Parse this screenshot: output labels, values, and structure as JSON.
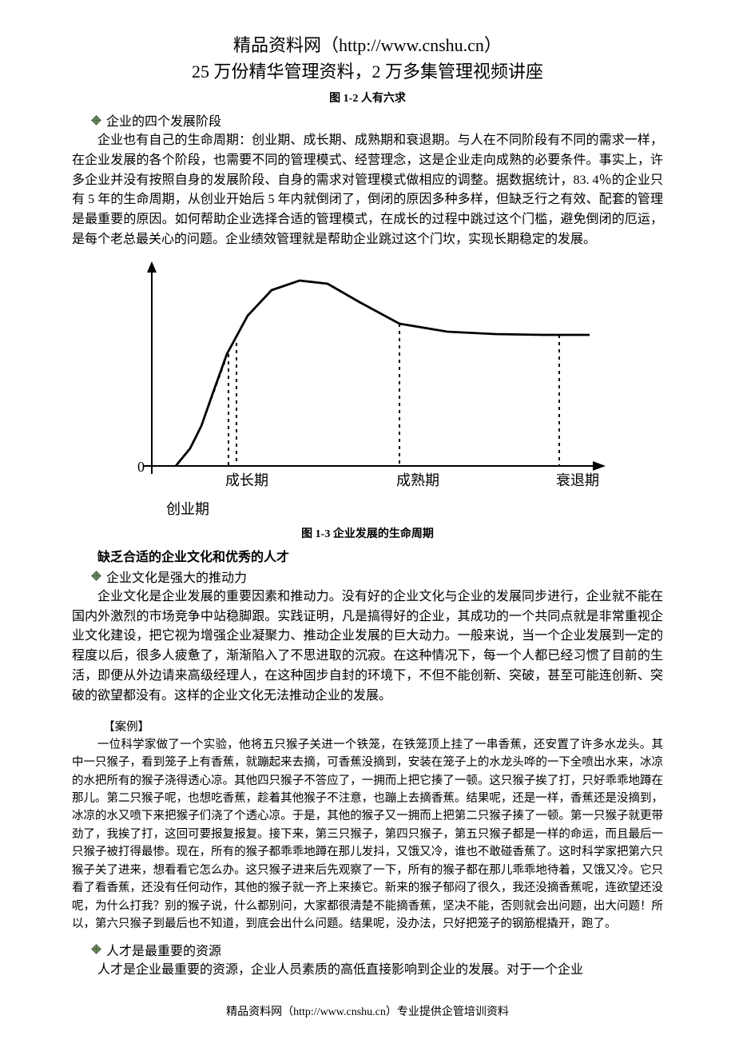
{
  "header": {
    "line1": "精品资料网（http://www.cnshu.cn）",
    "line2": "25 万份精华管理资料，2 万多集管理视频讲座"
  },
  "fig12_caption": "图 1-2   人有六求",
  "bullet1": "企业的四个发展阶段",
  "p1": "企业也有自己的生命周期：创业期、成长期、成熟期和衰退期。与人在不同阶段有不同的需求一样，在企业发展的各个阶段，也需要不同的管理模式、经营理念，这是企业走向成熟的必要条件。事实上，许多企业并没有按照自身的发展阶段、自身的需求对管理模式做相应的调整。据数据统计，83. 4％的企业只有 5 年的生命周期，从创业开始后 5 年内就倒闭了，倒闭的原因多种多样，但缺乏行之有效、配套的管理是最重要的原因。如何帮助企业选择合适的管理模式，在成长的过程中跳过这个门槛，避免倒闭的厄运，是每个老总最关心的问题。企业绩效管理就是帮助企业跳过这个门坎，实现长期稳定的发展。",
  "chart": {
    "type": "line",
    "axis_color": "#000000",
    "curve_color": "#000000",
    "curve_width": 2.8,
    "dash_pattern": "4,5",
    "phase_labels": [
      "成长期",
      "成熟期",
      "衰退期"
    ],
    "below_axis_label": "创业期",
    "origin_label": "0",
    "label_fontsize": 18,
    "label_font": "KaiTi, 楷体, serif",
    "xlim": [
      0,
      560
    ],
    "ylim": [
      0,
      260
    ],
    "x_ticks": [
      96,
      310,
      510
    ],
    "curve_points": [
      [
        30,
        250
      ],
      [
        48,
        228
      ],
      [
        62,
        200
      ],
      [
        76,
        160
      ],
      [
        94,
        110
      ],
      [
        120,
        62
      ],
      [
        150,
        30
      ],
      [
        185,
        18
      ],
      [
        220,
        22
      ],
      [
        260,
        45
      ],
      [
        310,
        72
      ],
      [
        370,
        82
      ],
      [
        430,
        85
      ],
      [
        490,
        86
      ],
      [
        548,
        86
      ]
    ],
    "dash_segments": [
      {
        "from": [
          62,
          200
        ],
        "to": [
          92,
          118
        ]
      },
      {
        "from": [
          96,
          110
        ],
        "to": [
          96,
          250
        ]
      },
      {
        "from": [
          106,
          96
        ],
        "to": [
          106,
          250
        ]
      },
      {
        "from": [
          310,
          72
        ],
        "to": [
          310,
          250
        ]
      },
      {
        "from": [
          510,
          86
        ],
        "to": [
          510,
          250
        ]
      }
    ]
  },
  "fig13_caption": "图 1-3   企业发展的生命周期",
  "section2_bold": "缺乏合适的企业文化和优秀的人才",
  "bullet2": "企业文化是强大的推动力",
  "p2": "企业文化是企业发展的重要因素和推动力。没有好的企业文化与企业的发展同步进行，企业就不能在国内外激烈的市场竞争中站稳脚跟。实践证明，凡是搞得好的企业，其成功的一个共同点就是非常重视企业文化建设，把它视为增强企业凝聚力、推动企业发展的巨大动力。一般来说，当一个企业发展到一定的程度以后，很多人疲惫了，渐渐陷入了不思进取的沉寂。在这种情况下，每一个人都已经习惯了目前的生活，即便从外边请来高级经理人，在这种固步自封的环境下，不但不能创新、突破，甚至可能连创新、突破的欲望都没有。这样的企业文化无法推动企业的发展。",
  "case_label": "【案例】",
  "case_body": "一位科学家做了一个实验，他将五只猴子关进一个铁笼，在铁笼顶上挂了一串香蕉，还安置了许多水龙头。其中一只猴子，看到笼子上有香蕉，就蹦起来去摘，可香蕉没摘到，安装在笼子上的水龙头哗的一下全喷出水来，冰凉的水把所有的猴子浇得透心凉。其他四只猴子不答应了，一拥而上把它揍了一顿。这只猴子挨了打，只好乖乖地蹲在那儿。第二只猴子呢，也想吃香蕉，趁着其他猴子不注意，也蹦上去摘香蕉。结果呢，还是一样，香蕉还是没摘到，冰凉的水又喷下来把猴子们浇了个透心凉。于是，其他的猴子又一拥而上把第二只猴子揍了一顿。第一只猴子就更带劲了，我挨了打，这回可要报复报复。接下来，第三只猴子，第四只猴子，第五只猴子都是一样的命运，而且最后一只猴子被打得最惨。现在，所有的猴子都乖乖地蹲在那儿发抖，又饿又冷，谁也不敢碰香蕉了。这时科学家把第六只猴子关了进来，想看看它怎么办。这只猴子进来后先观察了一下，所有的猴子都在那儿乖乖地待着，又饿又冷。它只看了看香蕉，还没有任何动作，其他的猴子就一齐上来揍它。新来的猴子郁闷了很久，我还没摘香蕉呢，连欲望还没呢，为什么打我？别的猴子说，什么都别问，大家都很清楚不能摘香蕉，坚决不能，否则就会出问题，出大问题！所以，第六只猴子到最后也不知道，到底会出什么问题。结果呢，没办法，只好把笼子的钢筋棍撬开，跑了。",
  "bullet3": "人才是最重要的资源",
  "p3": "人才是企业最重要的资源，企业人员素质的高低直接影响到企业的发展。对于一个企业",
  "footer": "精品资料网（http://www.cnshu.cn）专业提供企管培训资料",
  "diamond_icon": {
    "fill": "#6b8a5a",
    "stroke": "#394a2e",
    "size": 13
  }
}
